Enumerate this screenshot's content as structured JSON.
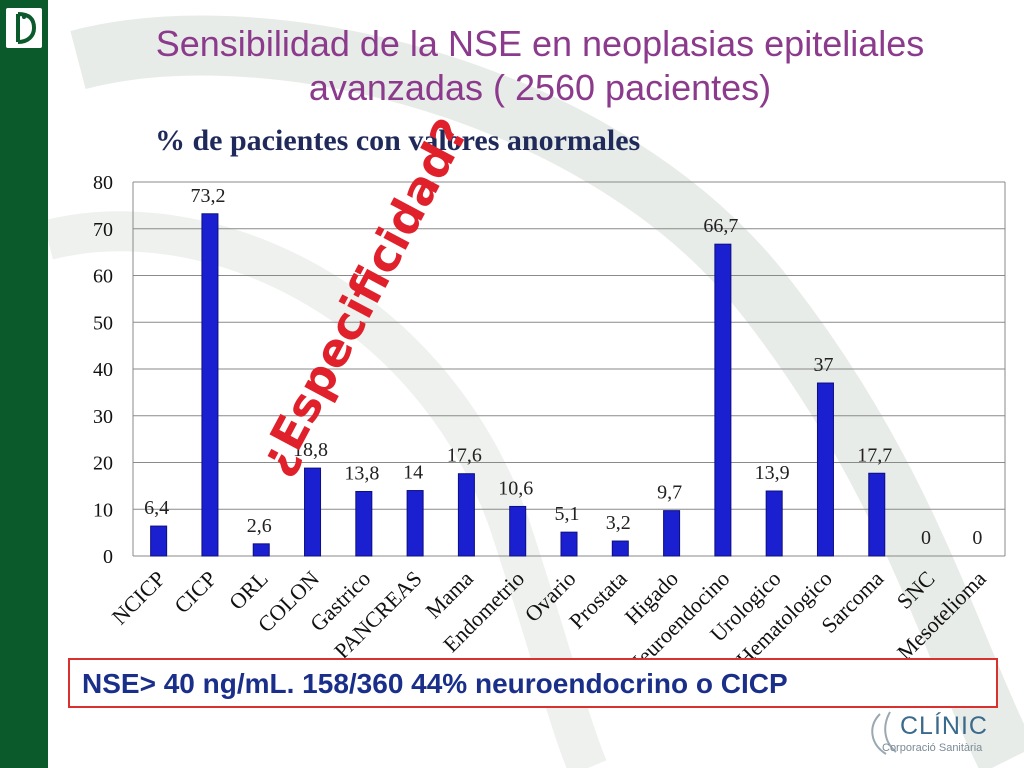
{
  "title": {
    "line1": "Sensibilidad de la NSE en neoplasias epiteliales",
    "line2": "avanzadas ( 2560 pacientes)"
  },
  "subtitle": "% de pacientes con valores anormales",
  "stamp": "¿Especificidad?",
  "footer": "NSE> 40 ng/mL. 158/360  44% neuroendocrino o CICP",
  "clinic": {
    "name": "CLÍNIC",
    "sub": "Corporació Sanitària"
  },
  "colors": {
    "bar": "#1a1fd0",
    "title": "#8b3a8c",
    "stamp": "#e0202a",
    "sidebar": "#0b5a2c",
    "footer_text": "#1a2f8a"
  },
  "chart_data": {
    "type": "bar",
    "categories": [
      "NCICP",
      "CICP",
      "ORL",
      "COLON",
      "Gastrico",
      "PANCREAS",
      "Mama",
      "Endometrio",
      "Ovario",
      "Prostata",
      "Higado",
      "Neuroendocino",
      "Urologico",
      "Hematologico",
      "Sarcoma",
      "SNC",
      "Mesotelioma"
    ],
    "values": [
      6.4,
      73.2,
      2.6,
      18.8,
      13.8,
      14,
      17.6,
      10.6,
      5.1,
      3.2,
      9.7,
      66.7,
      13.9,
      37,
      17.7,
      0,
      0
    ],
    "value_labels": [
      "6,4",
      "73,2",
      "2,6",
      "18,8",
      "13,8",
      "14",
      "17,6",
      "10,6",
      "5,1",
      "3,2",
      "9,7",
      "66,7",
      "13,9",
      "37",
      "17,7",
      "0",
      "0"
    ],
    "yticks": [
      "0",
      "10",
      "20",
      "30",
      "40",
      "50",
      "60",
      "70",
      "80"
    ],
    "ylim": [
      0,
      80
    ],
    "grid": true
  }
}
